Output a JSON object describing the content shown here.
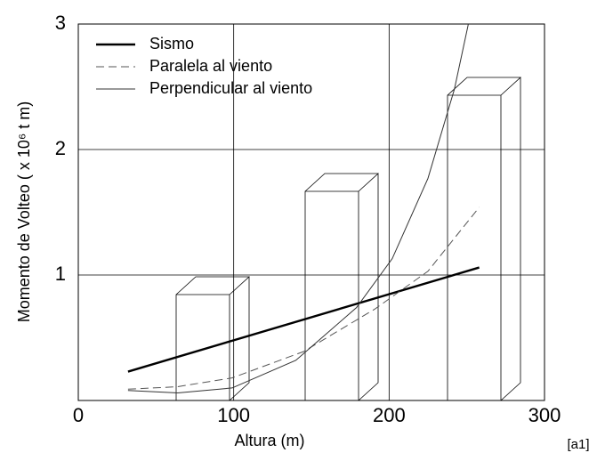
{
  "chart_data": {
    "type": "line",
    "xlabel": "Altura (m)",
    "ylabel": "Momento de Volteo ( x 10⁶ t m)",
    "annotation": "[a1]",
    "xlim": [
      0,
      300
    ],
    "ylim": [
      0,
      3
    ],
    "xticks": [
      0,
      100,
      200,
      300
    ],
    "yticks": [
      1,
      2,
      3
    ],
    "grid": true,
    "legend": "upper left",
    "series": [
      {
        "name": "Sismo",
        "color": "#000000",
        "style": "solid",
        "width": 2.4,
        "x": [
          32,
          258
        ],
        "values": [
          0.23,
          1.06
        ]
      },
      {
        "name": "Paralela al viento",
        "color": "#555555",
        "style": "dashed",
        "width": 1,
        "x": [
          32,
          64,
          99,
          145,
          191,
          225,
          258
        ],
        "values": [
          0.09,
          0.11,
          0.18,
          0.39,
          0.73,
          1.03,
          1.54
        ]
      },
      {
        "name": "Perpendicular al viento",
        "color": "#333333",
        "style": "solid",
        "width": 1,
        "x": [
          32,
          64,
          99,
          140,
          179,
          202,
          225,
          242,
          251
        ],
        "values": [
          0.08,
          0.06,
          0.1,
          0.32,
          0.74,
          1.13,
          1.77,
          2.48,
          3.0
        ]
      }
    ]
  }
}
